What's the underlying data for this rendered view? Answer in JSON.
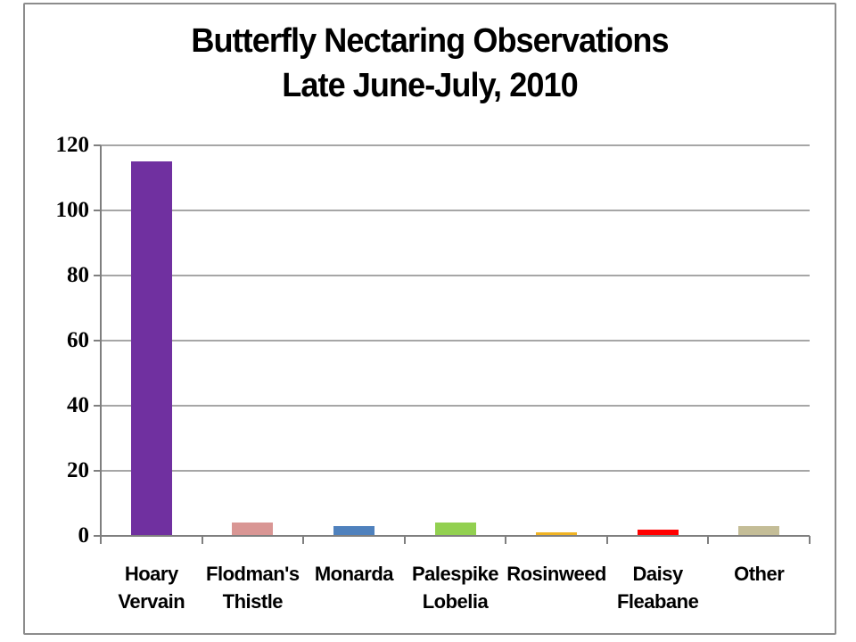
{
  "chart": {
    "title_line1": "Butterfly Nectaring Observations",
    "title_line2": "Late June-July, 2010"
  },
  "chart_data": {
    "type": "bar",
    "title": "Butterfly Nectaring Observations Late June-July, 2010",
    "categories": [
      "Hoary Vervain",
      "Flodman's Thistle",
      "Monarda",
      "Palespike Lobelia",
      "Rosinweed",
      "Daisy Fleabane",
      "Other"
    ],
    "category_label_lines": [
      [
        "Hoary",
        "Vervain"
      ],
      [
        "Flodman's",
        "Thistle"
      ],
      [
        "Monarda"
      ],
      [
        "Palespike",
        "Lobelia"
      ],
      [
        "Rosinweed"
      ],
      [
        "Daisy",
        "Fleabane"
      ],
      [
        "Other"
      ]
    ],
    "values": [
      115,
      4,
      3,
      4,
      1,
      2,
      3
    ],
    "bar_colors": [
      "#7030A0",
      "#D99694",
      "#4F81BD",
      "#92D050",
      "#F0B323",
      "#FF0000",
      "#C4BD97"
    ],
    "xlabel": "",
    "ylabel": "",
    "ylim": [
      0,
      120
    ],
    "yticks": [
      0,
      20,
      40,
      60,
      80,
      100,
      120
    ],
    "grid": "horizontal-only",
    "legend": "none",
    "colors": {
      "gridline": "#A6A6A6",
      "axis": "#7F7F7F",
      "frame_border": "#8C8C8C",
      "background": "#FFFFFF",
      "text": "#000000"
    }
  }
}
